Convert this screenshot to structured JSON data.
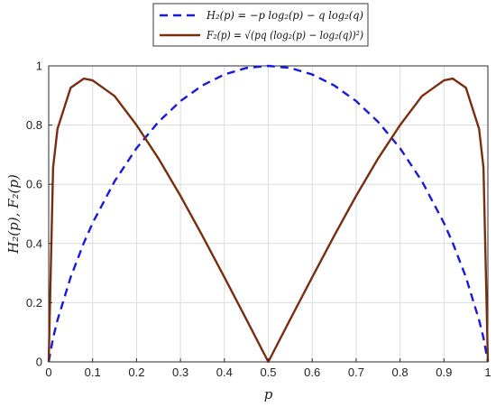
{
  "chart_data": {
    "type": "line",
    "title": "",
    "xlabel": "p",
    "ylabel": "H₂(p), F₂(p)",
    "xlim": [
      0,
      1
    ],
    "ylim": [
      0,
      1
    ],
    "x_ticks": [
      "0",
      "0.1",
      "0.2",
      "0.3",
      "0.4",
      "0.5",
      "0.6",
      "0.7",
      "0.8",
      "0.9",
      "1"
    ],
    "y_ticks": [
      "0",
      "0.2",
      "0.4",
      "0.6",
      "0.8",
      "1"
    ],
    "grid": true,
    "legend_position": "top-center, outside plot",
    "x": [
      0.0,
      0.01,
      0.02,
      0.05,
      0.08,
      0.1,
      0.15,
      0.2,
      0.25,
      0.3,
      0.35,
      0.4,
      0.45,
      0.5,
      0.55,
      0.6,
      0.65,
      0.7,
      0.75,
      0.8,
      0.85,
      0.9,
      0.92,
      0.95,
      0.98,
      0.99,
      1.0
    ],
    "series": [
      {
        "name": "H₂(p) = −p log₂(p) − q log₂(q)",
        "color": "#1a1adb",
        "style": "dashed",
        "y": [
          0.0,
          0.081,
          0.141,
          0.286,
          0.402,
          0.469,
          0.61,
          0.722,
          0.811,
          0.881,
          0.934,
          0.971,
          0.993,
          1.0,
          0.993,
          0.971,
          0.934,
          0.881,
          0.811,
          0.722,
          0.61,
          0.469,
          0.402,
          0.286,
          0.141,
          0.081,
          0.0
        ]
      },
      {
        "name": "F₂(p) = √(pq (log₂(p) − log₂(q))²)",
        "color": "#7a2e10",
        "style": "solid",
        "y": [
          0.0,
          0.656,
          0.787,
          0.926,
          0.957,
          0.951,
          0.898,
          0.8,
          0.687,
          0.561,
          0.426,
          0.286,
          0.144,
          0.0,
          0.144,
          0.286,
          0.426,
          0.561,
          0.687,
          0.8,
          0.898,
          0.951,
          0.957,
          0.926,
          0.787,
          0.656,
          0.0
        ]
      }
    ]
  }
}
